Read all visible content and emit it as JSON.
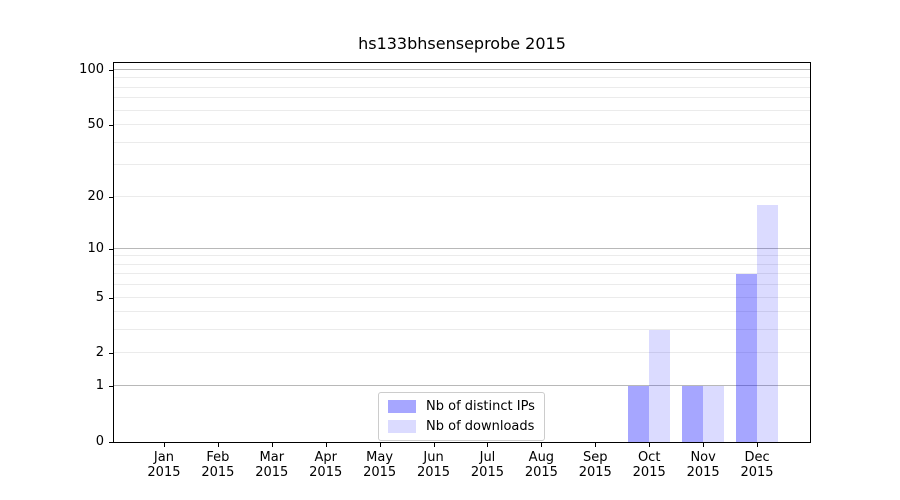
{
  "title": "hs133bhsenseprobe 2015",
  "colors": {
    "bar_ips": "rgba(0,0,255,0.35)",
    "bar_downloads": "rgba(0,0,255,0.14)",
    "grid_minor": "#ebebeb",
    "grid_major": "#b8b8b8",
    "axis": "#000000",
    "legend_border": "#cccccc"
  },
  "legend": {
    "ips_label": "Nb of distinct IPs",
    "downloads_label": "Nb of downloads"
  },
  "chart_data": {
    "type": "bar",
    "title": "hs133bhsenseprobe 2015",
    "categories": [
      {
        "month": "Jan",
        "year": "2015"
      },
      {
        "month": "Feb",
        "year": "2015"
      },
      {
        "month": "Mar",
        "year": "2015"
      },
      {
        "month": "Apr",
        "year": "2015"
      },
      {
        "month": "May",
        "year": "2015"
      },
      {
        "month": "Jun",
        "year": "2015"
      },
      {
        "month": "Jul",
        "year": "2015"
      },
      {
        "month": "Aug",
        "year": "2015"
      },
      {
        "month": "Sep",
        "year": "2015"
      },
      {
        "month": "Oct",
        "year": "2015"
      },
      {
        "month": "Nov",
        "year": "2015"
      },
      {
        "month": "Dec",
        "year": "2015"
      }
    ],
    "series": [
      {
        "name": "Nb of distinct IPs",
        "color": "rgba(0,0,255,0.35)",
        "values": [
          0,
          0,
          0,
          0,
          0,
          0,
          0,
          0,
          0,
          1,
          1,
          7
        ]
      },
      {
        "name": "Nb of downloads",
        "color": "rgba(0,0,255,0.14)",
        "values": [
          0,
          0,
          0,
          0,
          0,
          0,
          0,
          0,
          0,
          3,
          1,
          18
        ]
      }
    ],
    "xlabel": "",
    "ylabel": "",
    "yscale": "log1p",
    "ylim": [
      0,
      112
    ],
    "yticks": [
      100,
      50,
      20,
      10,
      5,
      2,
      1,
      0
    ],
    "minor_gridlines": [
      2,
      3,
      4,
      5,
      6,
      7,
      8,
      9,
      20,
      30,
      40,
      50,
      60,
      70,
      80,
      90
    ],
    "major_gridlines": [
      1,
      10,
      100
    ],
    "grid": true,
    "legend_position": "lower center"
  }
}
